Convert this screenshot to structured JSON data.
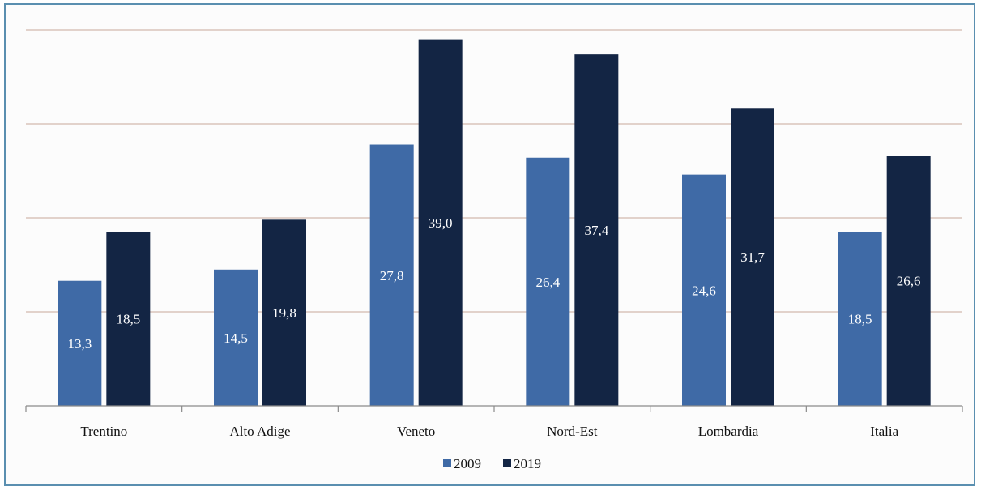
{
  "chart_data": {
    "type": "bar",
    "categories": [
      "Trentino",
      "Alto Adige",
      "Veneto",
      "Nord-Est",
      "Lombardia",
      "Italia"
    ],
    "series": [
      {
        "name": "2009",
        "values": [
          13.3,
          14.5,
          27.8,
          26.4,
          24.6,
          18.5
        ],
        "labels": [
          "13,3",
          "14,5",
          "27,8",
          "26,4",
          "24,6",
          "18,5"
        ],
        "color": "#3f6aa6"
      },
      {
        "name": "2019",
        "values": [
          18.5,
          19.8,
          39.0,
          37.4,
          31.7,
          26.6
        ],
        "labels": [
          "18,5",
          "19,8",
          "39,0",
          "37,4",
          "31,7",
          "26,6"
        ],
        "color": "#132544"
      }
    ],
    "ylim": [
      0,
      40
    ],
    "gridlines": [
      10,
      20,
      30,
      40
    ],
    "grid": true,
    "legend_position": "bottom-center",
    "gridline_color": "#c9a79a",
    "axis_color": "#8a8a8a"
  }
}
